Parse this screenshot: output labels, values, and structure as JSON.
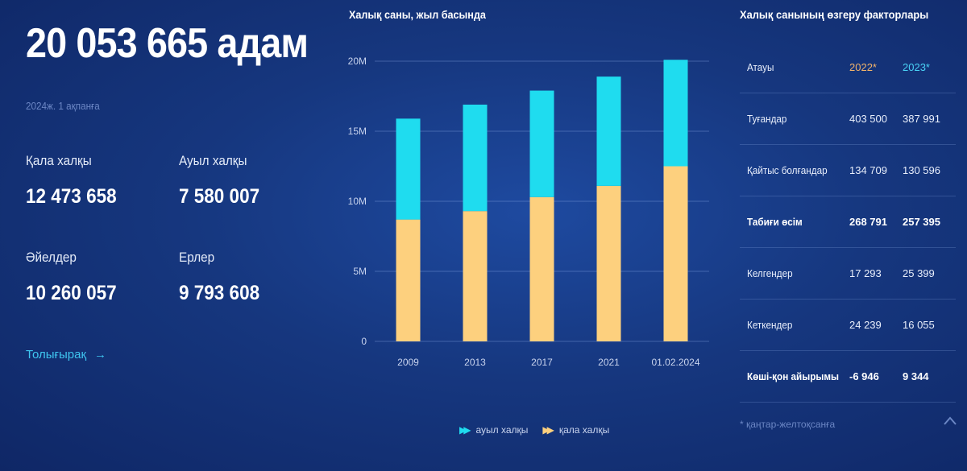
{
  "summary": {
    "total": "20 053 665 адам",
    "date": "2024ж. 1 ақпанға",
    "urban_label": "Қала халқы",
    "urban_value": "12 473 658",
    "rural_label": "Ауыл халқы",
    "rural_value": "7 580 007",
    "women_label": "Әйелдер",
    "women_value": "10 260 057",
    "men_label": "Ерлер",
    "men_value": "9 793 608",
    "more_link": "Толығырақ"
  },
  "chart_data": {
    "type": "bar",
    "stacked": true,
    "title": "Халық саны, жыл басында",
    "categories": [
      "2009",
      "2013",
      "2017",
      "2021",
      "01.02.2024"
    ],
    "series": [
      {
        "name": "қала халқы",
        "color": "#fdd07e",
        "values": [
          8.7,
          9.3,
          10.3,
          11.1,
          12.5
        ]
      },
      {
        "name": "ауыл халқы",
        "color": "#1fdcef",
        "values": [
          7.2,
          7.6,
          7.6,
          7.8,
          7.6
        ]
      }
    ],
    "yticks": [
      "0",
      "5M",
      "10M",
      "15M",
      "20M"
    ],
    "ylim": [
      0,
      20
    ],
    "unit": "млн"
  },
  "legend": {
    "rural": "ауыл халқы",
    "urban": "қала халқы"
  },
  "table": {
    "title": "Халық санының өзгеру факторлары",
    "head": {
      "name": "Атауы",
      "y1": "2022*",
      "y2": "2023*"
    },
    "rows": [
      {
        "name": "Туғандар",
        "y1": "403 500",
        "y2": "387 991",
        "bold": false
      },
      {
        "name": "Қайтыс болғандар",
        "y1": "134 709",
        "y2": "130 596",
        "bold": false
      },
      {
        "name": "Табиғи өсім",
        "y1": "268 791",
        "y2": "257 395",
        "bold": true
      },
      {
        "name": "Келгендер",
        "y1": "17 293",
        "y2": "25 399",
        "bold": false
      },
      {
        "name": "Кеткендер",
        "y1": "24 239",
        "y2": "16 055",
        "bold": false
      },
      {
        "name": "Көші-қон айырымы",
        "y1": "-6 946",
        "y2": "9 344",
        "bold": true
      }
    ],
    "footnote": "* қаңтар-желтоқсанға"
  },
  "colors": {
    "urban": "#fdd07e",
    "rural": "#1fdcef",
    "accent": "#3fc6f0"
  }
}
